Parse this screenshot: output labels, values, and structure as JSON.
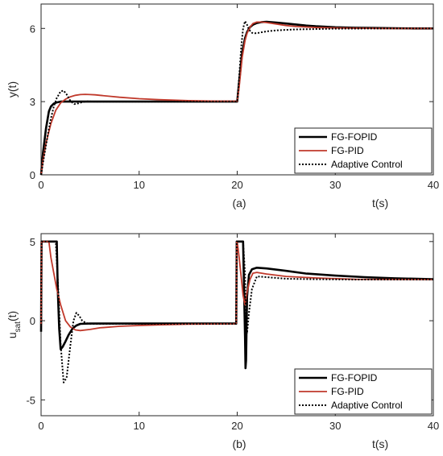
{
  "chart_data": [
    {
      "type": "line",
      "panel_label": "(a)",
      "xlabel": "t(s)",
      "ylabel": "y(t)",
      "xlim": [
        0,
        40
      ],
      "ylim": [
        0,
        7
      ],
      "xticks": [
        0,
        10,
        20,
        30,
        40
      ],
      "yticks": [
        0,
        3,
        6
      ],
      "grid": false,
      "legend_position": "bottom-right",
      "series": [
        {
          "name": "FG-FOPID",
          "color": "#000000",
          "style": "solid",
          "x": [
            0,
            0.2,
            0.5,
            0.8,
            1.0,
            1.3,
            1.6,
            2.0,
            2.5,
            3.0,
            5,
            10,
            15,
            19.99,
            20.0,
            20.2,
            20.5,
            20.8,
            21.0,
            21.3,
            21.6,
            22.0,
            22.5,
            23.0,
            24.0,
            25.0,
            26.0,
            27.0,
            28.0,
            30.0,
            32.0,
            34.0,
            36.0,
            38.0,
            40.0
          ],
          "y": [
            0,
            0.9,
            1.9,
            2.6,
            2.8,
            2.92,
            2.97,
            3.0,
            3.0,
            3.0,
            3.0,
            3.0,
            3.0,
            3.0,
            3.0,
            3.8,
            5.0,
            5.6,
            5.85,
            6.05,
            6.15,
            6.22,
            6.26,
            6.27,
            6.24,
            6.2,
            6.16,
            6.12,
            6.09,
            6.05,
            6.03,
            6.02,
            6.01,
            6.0,
            6.0
          ]
        },
        {
          "name": "FG-PID",
          "color": "#c0392b",
          "style": "solid",
          "x": [
            0,
            0.2,
            0.5,
            1.0,
            1.5,
            2.0,
            2.5,
            3.0,
            3.5,
            4.0,
            4.5,
            5.0,
            5.5,
            6.0,
            7.0,
            8.0,
            10.0,
            12.0,
            15.0,
            18.0,
            19.99,
            20.0,
            20.2,
            20.5,
            20.8,
            21.0,
            21.3,
            21.6,
            22.0,
            22.5,
            23.0,
            24.0,
            25.0,
            26.0,
            28.0,
            30.0,
            35.0,
            40.0
          ],
          "y": [
            0,
            0.6,
            1.3,
            2.1,
            2.65,
            2.95,
            3.1,
            3.2,
            3.26,
            3.29,
            3.3,
            3.29,
            3.28,
            3.26,
            3.22,
            3.18,
            3.12,
            3.08,
            3.04,
            3.02,
            3.02,
            3.02,
            3.6,
            4.8,
            5.5,
            5.8,
            6.05,
            6.2,
            6.26,
            6.26,
            6.24,
            6.18,
            6.12,
            6.08,
            6.04,
            6.02,
            6.0,
            6.0
          ]
        },
        {
          "name": "Adaptive Control",
          "color": "#000000",
          "style": "dotted",
          "x": [
            0,
            0.2,
            0.5,
            0.8,
            1.0,
            1.3,
            1.6,
            2.0,
            2.3,
            2.6,
            3.0,
            3.4,
            3.8,
            4.2,
            4.8,
            5.5,
            7.0,
            10.0,
            15.0,
            19.99,
            20.0,
            20.2,
            20.4,
            20.6,
            20.8,
            21.0,
            21.2,
            21.5,
            21.8,
            22.2,
            22.6,
            23.0,
            24.0,
            26.0,
            30.0,
            35.0,
            40.0
          ],
          "y": [
            0,
            0.5,
            1.2,
            1.9,
            2.3,
            2.8,
            3.15,
            3.42,
            3.45,
            3.3,
            3.02,
            2.9,
            2.93,
            2.98,
            3.01,
            3.0,
            3.0,
            3.0,
            3.0,
            3.0,
            3.0,
            4.0,
            5.2,
            6.0,
            6.3,
            6.15,
            5.95,
            5.82,
            5.8,
            5.82,
            5.85,
            5.88,
            5.92,
            5.96,
            5.99,
            6.0,
            6.0
          ]
        }
      ]
    },
    {
      "type": "line",
      "panel_label": "(b)",
      "xlabel": "t(s)",
      "ylabel": "u",
      "ylabel_subscript": "sat",
      "ylabel_suffix": "(t)",
      "xlim": [
        0,
        40
      ],
      "ylim": [
        -6,
        5.5
      ],
      "xticks": [
        0,
        10,
        20,
        30,
        40
      ],
      "yticks": [
        -5,
        0,
        5
      ],
      "ytick_labels": [
        "-5",
        "0",
        "5"
      ],
      "grid": false,
      "legend_position": "bottom-right",
      "series": [
        {
          "name": "FG-FOPID",
          "color": "#000000",
          "style": "solid",
          "x": [
            0,
            0.05,
            0.1,
            0.2,
            1.6,
            1.7,
            1.85,
            2.0,
            2.2,
            2.5,
            2.8,
            3.2,
            3.6,
            4.0,
            5.0,
            7.0,
            10.0,
            15.0,
            19.9,
            19.95,
            20.0,
            20.3,
            20.6,
            20.7,
            20.8,
            20.85,
            20.9,
            21.0,
            21.2,
            21.5,
            22.0,
            23.0,
            25.0,
            27.0,
            30.0,
            33.0,
            36.0,
            40.0
          ],
          "y": [
            -0.7,
            5.0,
            5.0,
            5.0,
            5.0,
            2.0,
            -0.5,
            -1.8,
            -1.65,
            -1.3,
            -0.9,
            -0.5,
            -0.3,
            -0.2,
            -0.18,
            -0.18,
            -0.18,
            -0.18,
            -0.18,
            5.0,
            5.0,
            5.0,
            5.0,
            2.0,
            -1.0,
            -3.0,
            -2.5,
            1.5,
            2.9,
            3.25,
            3.35,
            3.3,
            3.15,
            2.98,
            2.85,
            2.75,
            2.68,
            2.62
          ]
        },
        {
          "name": "FG-PID",
          "color": "#c0392b",
          "style": "solid",
          "x": [
            0,
            0.05,
            0.1,
            0.3,
            0.8,
            1.0,
            1.3,
            1.6,
            2.0,
            2.5,
            3.0,
            3.5,
            4.0,
            5.0,
            6.0,
            8.0,
            10.0,
            12.0,
            15.0,
            19.9,
            19.95,
            20.0,
            20.2,
            20.4,
            20.6,
            20.8,
            21.0,
            21.3,
            21.6,
            22.0,
            23.0,
            25.0,
            28.0,
            32.0,
            40.0
          ],
          "y": [
            -0.3,
            5.0,
            5.0,
            5.0,
            5.0,
            4.0,
            3.0,
            2.0,
            1.0,
            0.0,
            -0.4,
            -0.58,
            -0.62,
            -0.55,
            -0.45,
            -0.35,
            -0.3,
            -0.26,
            -0.22,
            -0.2,
            5.0,
            5.0,
            4.0,
            2.8,
            1.6,
            1.0,
            1.8,
            2.6,
            3.0,
            3.05,
            2.95,
            2.8,
            2.7,
            2.62,
            2.6
          ]
        },
        {
          "name": "Adaptive Control",
          "color": "#000000",
          "style": "dotted",
          "x": [
            0,
            0.05,
            0.1,
            0.3,
            1.0,
            1.5,
            1.75,
            2.0,
            2.3,
            2.6,
            3.0,
            3.3,
            3.6,
            3.9,
            4.2,
            4.6,
            5.0,
            6.0,
            7.0,
            10.0,
            15.0,
            19.9,
            19.95,
            20.0,
            20.3,
            20.6,
            20.8,
            20.9,
            21.0,
            21.2,
            21.5,
            22.0,
            23.0,
            25.0,
            28.0,
            32.0,
            40.0
          ],
          "y": [
            -0.5,
            5.0,
            5.0,
            5.0,
            5.0,
            5.0,
            2.0,
            -1.5,
            -3.9,
            -3.6,
            -1.5,
            0.0,
            0.5,
            0.3,
            0.0,
            -0.15,
            -0.2,
            -0.2,
            -0.2,
            -0.2,
            -0.2,
            -0.2,
            5.0,
            5.0,
            5.0,
            5.0,
            3.0,
            0.0,
            -0.8,
            0.5,
            2.0,
            2.8,
            2.75,
            2.65,
            2.62,
            2.6,
            2.6
          ]
        }
      ]
    }
  ]
}
